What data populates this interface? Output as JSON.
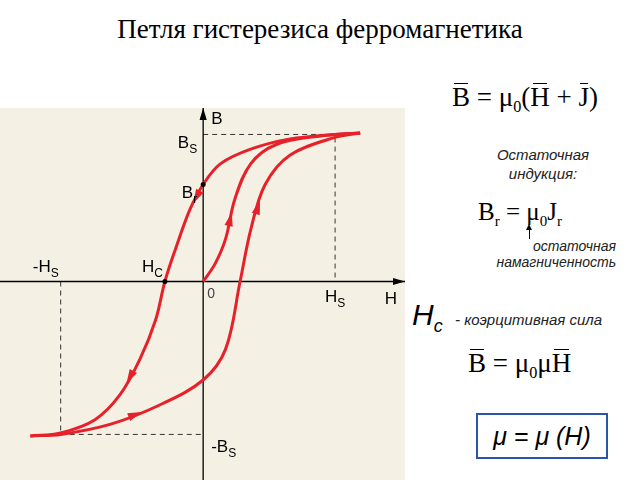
{
  "chart_data": {
    "type": "line",
    "title": "Петля гистерезиса ферромагнетика",
    "x_label": "H",
    "y_label": "B",
    "xlim": [
      -1.54,
      1.53
    ],
    "ylim": [
      -1.35,
      1.18
    ],
    "xticks": [
      0
    ],
    "yticks": [],
    "tick_labels": "x",
    "grid": false,
    "series": [
      {
        "color": "#e8202a",
        "line_style": "solid",
        "x": [
          1.19,
          1.0,
          0.66,
          0.36,
          0.13,
          0,
          -0.1,
          -0.21,
          -0.29,
          -0.36,
          -0.48,
          -0.63,
          -0.82,
          -1.08,
          -1.31
        ],
        "values": [
          1.01,
          1.0,
          0.97,
          0.9,
          0.8,
          0.66,
          0.49,
          0.22,
          0,
          -0.26,
          -0.53,
          -0.77,
          -0.94,
          -1.03,
          -1.05
        ]
      },
      {
        "color": "#e8202a",
        "line_style": "solid",
        "x": [
          -1.31,
          -1.08,
          -0.7,
          -0.33,
          0,
          0.17,
          0.28,
          0.36,
          0.47,
          0.66,
          1.0,
          1.19
        ],
        "values": [
          -1.05,
          -1.04,
          -0.97,
          -0.84,
          -0.67,
          -0.46,
          0,
          0.35,
          0.66,
          0.86,
          0.98,
          1.01
        ]
      },
      {
        "color": "#e8202a",
        "line_style": "solid",
        "x": [
          0,
          0.09,
          0.17,
          0.24,
          0.36,
          0.55,
          0.89,
          1.19
        ],
        "values": [
          0,
          0.12,
          0.29,
          0.56,
          0.8,
          0.93,
          0.99,
          1.01
        ]
      }
    ],
    "levels": [
      {
        "axis": "y",
        "value": 1.0,
        "label": "B",
        "sub": "S"
      },
      {
        "axis": "y",
        "value": 0.66,
        "label": "B",
        "sub": "r"
      },
      {
        "axis": "y",
        "value": -1.04,
        "label": "-B",
        "sub": "S"
      },
      {
        "axis": "x",
        "value": -1.08,
        "label": "-H",
        "sub": "S"
      },
      {
        "axis": "x",
        "value": -0.29,
        "label": "H",
        "sub": "C"
      },
      {
        "axis": "x",
        "value": 1.0,
        "label": "H",
        "sub": "S"
      }
    ]
  },
  "formulas": {
    "induction": [
      {
        "v": "B"
      },
      " = μ",
      {
        "s": "0"
      },
      "(",
      {
        "v": "H"
      },
      " + ",
      {
        "v": "J"
      },
      ")"
    ],
    "remanence_caption": "Остаточная индукция:",
    "remanence": [
      "B",
      {
        "s": "r"
      },
      " = μ",
      {
        "s": "0"
      },
      "J",
      {
        "s": "r"
      }
    ],
    "magnetization_caption": [
      "остаточная",
      "намагниченность"
    ],
    "coercive_symbol": [
      "H",
      {
        "s": "c"
      }
    ],
    "coercive_text": "- коэрцитивная сила",
    "permeability": [
      {
        "v": "B"
      },
      " = μ",
      {
        "s": "0"
      },
      "μ",
      {
        "v": "H"
      }
    ],
    "dependence": "μ = μ (H)"
  }
}
